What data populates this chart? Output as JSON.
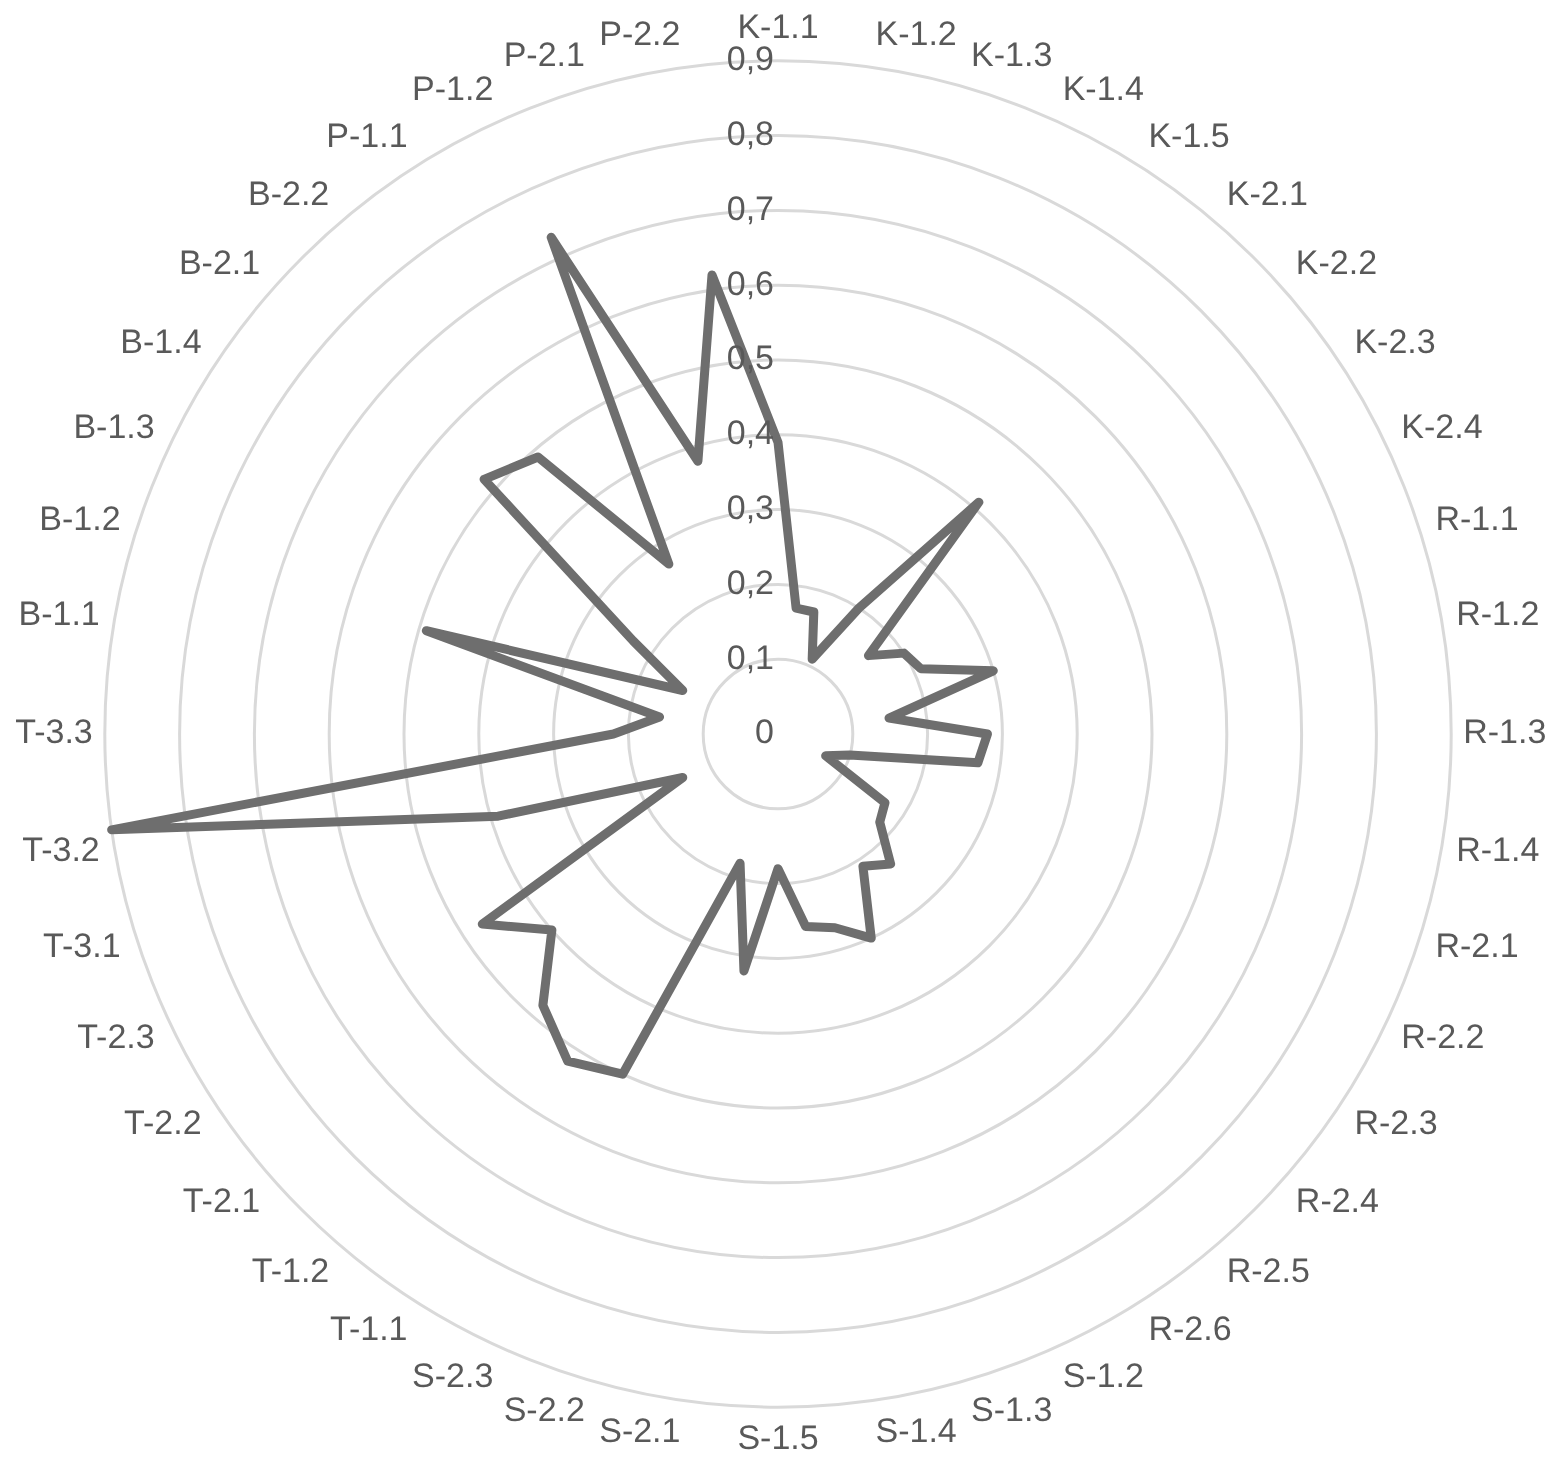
{
  "chart_data": {
    "type": "radar",
    "categories": [
      "K-1.1",
      "K-1.2",
      "K-1.3",
      "K-1.4",
      "K-1.5",
      "K-2.1",
      "K-2.2",
      "K-2.3",
      "K-2.4",
      "R-1.1",
      "R-1.2",
      "R-1.3",
      "R-1.4",
      "R-2.1",
      "R-2.2",
      "R-2.3",
      "R-2.4",
      "R-2.5",
      "R-2.6",
      "S-1.2",
      "S-1.3",
      "S-1.4",
      "S-1.5",
      "S-2.1",
      "S-2.2",
      "S-2.3",
      "T-1.1",
      "T-1.2",
      "T-2.1",
      "T-2.2",
      "T-2.3",
      "T-3.1",
      "T-3.2",
      "T-3.3",
      "B-1.1",
      "B-1.2",
      "B-1.3",
      "B-1.4",
      "B-2.1",
      "B-2.2",
      "P-1.1",
      "P-1.2",
      "P-2.1",
      "P-2.2"
    ],
    "series": [
      {
        "color": "#6e6e6e",
        "values": [
          0.39,
          0.17,
          0.17,
          0.11,
          0.2,
          0.41,
          0.16,
          0.2,
          0.21,
          0.3,
          0.15,
          0.28,
          0.27,
          0.1,
          0.07,
          0.17,
          0.18,
          0.23,
          0.21,
          0.3,
          0.27,
          0.26,
          0.18,
          0.32,
          0.18,
          0.5,
          0.52,
          0.48,
          0.4,
          0.47,
          0.14,
          0.39,
          0.9,
          0.22,
          0.16,
          0.49,
          0.14,
          0.23,
          0.52,
          0.49,
          0.27,
          0.73,
          0.38,
          0.62
        ]
      }
    ],
    "ylim": [
      0,
      0.9
    ],
    "yticks": [
      0,
      {
        "value": 0.1,
        "label": "0,1"
      },
      {
        "value": 0.2,
        "label": "0,2"
      },
      {
        "value": 0.3,
        "label": "0,3"
      },
      {
        "value": 0.4,
        "label": "0,4"
      },
      {
        "value": 0.5,
        "label": "0,5"
      },
      {
        "value": 0.6,
        "label": "0,6"
      },
      {
        "value": 0.7,
        "label": "0,7"
      },
      {
        "value": 0.8,
        "label": "0,8"
      },
      {
        "value": 0.9,
        "label": "0,9"
      }
    ],
    "grid": true,
    "legend": false,
    "marker": "none",
    "line_style": "solid"
  }
}
